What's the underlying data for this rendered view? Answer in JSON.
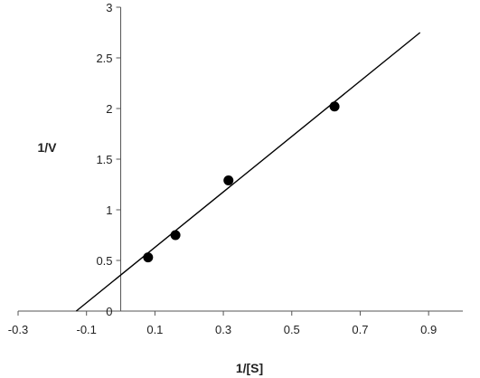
{
  "chart_data": {
    "type": "scatter",
    "title": "",
    "xlabel": "1/[S]",
    "ylabel": "1/V",
    "xlim": [
      -0.3,
      1.0
    ],
    "ylim": [
      0,
      3
    ],
    "x_ticks": [
      -0.3,
      -0.1,
      0.1,
      0.3,
      0.5,
      0.7,
      0.9
    ],
    "x_tick_labels": [
      "-0.3",
      "-0.1",
      "0.1",
      "0.3",
      "0.5",
      "0.7",
      "0.9"
    ],
    "y_ticks": [
      0,
      0.5,
      1,
      1.5,
      2,
      2.5,
      3
    ],
    "y_tick_labels": [
      "0",
      "0.5",
      "1",
      "1.5",
      "2",
      "2.5",
      "3"
    ],
    "grid": false,
    "legend": "none",
    "points": [
      {
        "x": 0.08,
        "y": 0.53
      },
      {
        "x": 0.16,
        "y": 0.75
      },
      {
        "x": 0.315,
        "y": 1.29
      },
      {
        "x": 0.625,
        "y": 2.02
      }
    ],
    "fit_line": {
      "x1": -0.13,
      "y1": 0,
      "x2": 0.875,
      "y2": 2.75
    },
    "colors": {
      "points": "#000000",
      "line": "#000000",
      "axes": "#555555"
    }
  }
}
